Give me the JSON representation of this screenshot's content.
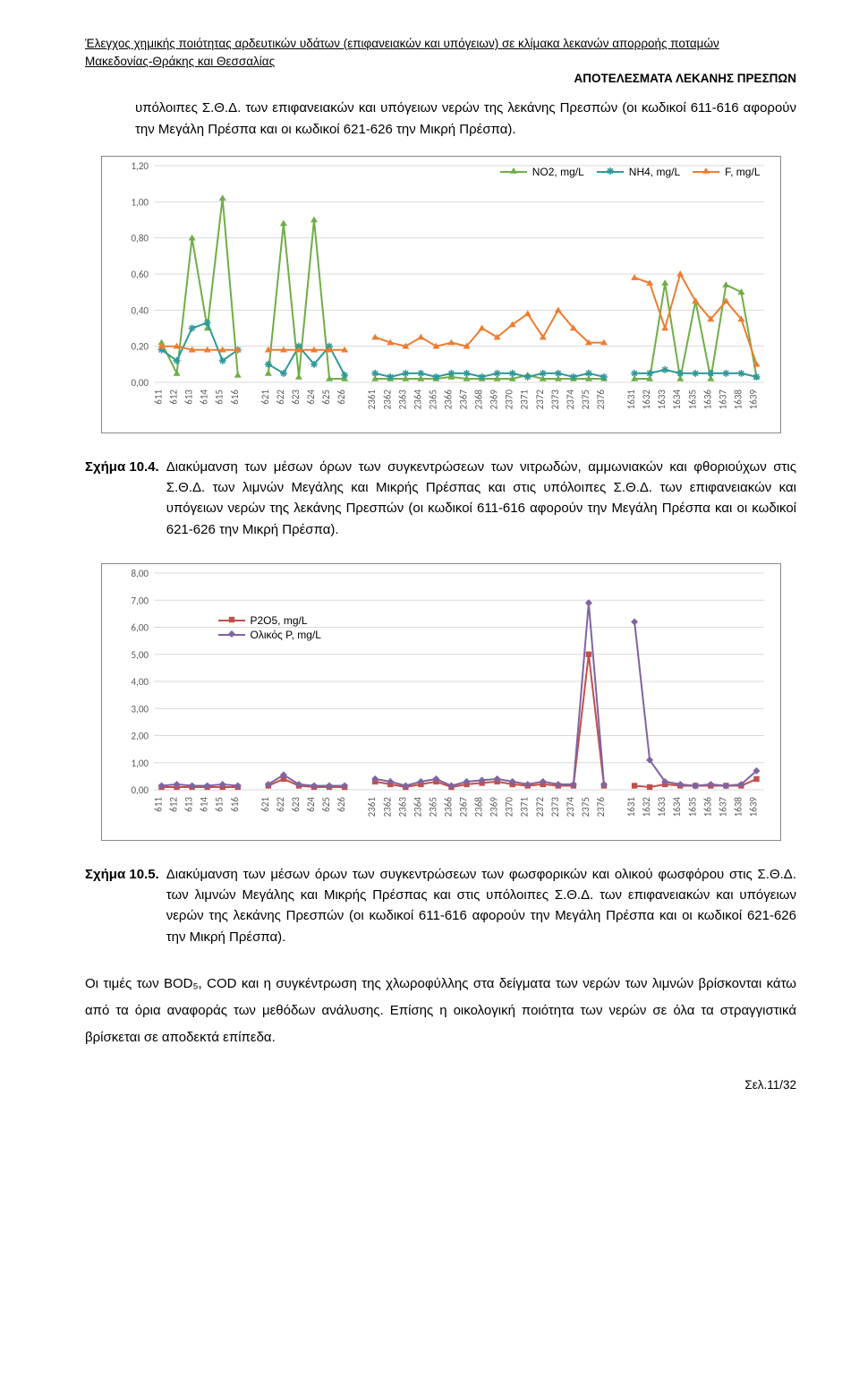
{
  "header": {
    "title_line1": "Έλεγχος χημικής ποιότητας αρδευτικών υδάτων (επιφανειακών και υπόγειων) σε κλίμακα λεκανών απορροής ποταμών",
    "title_line2": "Μακεδονίας-Θράκης και Θεσσαλίας",
    "subtitle_right": "ΑΠΟΤΕΛΕΣΜΑΤΑ ΛΕΚΑΝΗΣ ΠΡΕΣΠΩΝ"
  },
  "intro_paragraph": "υπόλοιπες Σ.Θ.Δ. των επιφανειακών και υπόγειων νερών της λεκάνης Πρεσπών (οι κωδικοί 611-616 αφορούν την Μεγάλη Πρέσπα και οι κωδικοί 621-626 την Μικρή Πρέσπα).",
  "chart1": {
    "type": "line",
    "ylim": [
      0.0,
      1.2
    ],
    "yticks": [
      0.0,
      0.2,
      0.4,
      0.6,
      0.8,
      1.0,
      1.2
    ],
    "ytick_labels": [
      "0,00",
      "0,20",
      "0,40",
      "0,60",
      "0,80",
      "1,00",
      "1,20"
    ],
    "categories": [
      "611",
      "612",
      "613",
      "614",
      "615",
      "616",
      "",
      "621",
      "622",
      "623",
      "624",
      "625",
      "626",
      "",
      "2361",
      "2362",
      "2363",
      "2364",
      "2365",
      "2366",
      "2367",
      "2368",
      "2369",
      "2370",
      "2371",
      "2372",
      "2373",
      "2374",
      "2375",
      "2376",
      "",
      "1631",
      "1632",
      "1633",
      "1634",
      "1635",
      "1636",
      "1637",
      "1638",
      "1639"
    ],
    "background_color": "#ffffff",
    "grid_color": "#d9d9d9",
    "series": [
      {
        "name": "NO2, mg/L",
        "color": "#70ad47",
        "marker": "triangle",
        "values": [
          0.22,
          0.05,
          0.8,
          0.3,
          1.02,
          0.04,
          null,
          0.05,
          0.88,
          0.03,
          0.9,
          0.02,
          0.02,
          null,
          0.02,
          0.02,
          0.02,
          0.02,
          0.02,
          0.03,
          0.02,
          0.02,
          0.02,
          0.02,
          0.04,
          0.02,
          0.02,
          0.02,
          0.02,
          0.02,
          null,
          0.02,
          0.02,
          0.55,
          0.02,
          0.45,
          0.02,
          0.54,
          0.5,
          0.03
        ]
      },
      {
        "name": "NH4, mg/L",
        "color": "#2e9999",
        "marker": "star",
        "values": [
          0.18,
          0.12,
          0.3,
          0.33,
          0.12,
          0.18,
          null,
          0.1,
          0.05,
          0.2,
          0.1,
          0.2,
          0.04,
          null,
          0.05,
          0.03,
          0.05,
          0.05,
          0.03,
          0.05,
          0.05,
          0.03,
          0.05,
          0.05,
          0.03,
          0.05,
          0.05,
          0.03,
          0.05,
          0.03,
          null,
          0.05,
          0.05,
          0.07,
          0.05,
          0.05,
          0.05,
          0.05,
          0.05,
          0.03
        ]
      },
      {
        "name": "F, mg/L",
        "color": "#ed7d31",
        "marker": "triangle",
        "values": [
          0.2,
          0.2,
          0.18,
          0.18,
          0.18,
          0.18,
          null,
          0.18,
          0.18,
          0.18,
          0.18,
          0.18,
          0.18,
          null,
          0.25,
          0.22,
          0.2,
          0.25,
          0.2,
          0.22,
          0.2,
          0.3,
          0.25,
          0.32,
          0.38,
          0.25,
          0.4,
          0.3,
          0.22,
          0.22,
          null,
          0.58,
          0.55,
          0.3,
          0.6,
          0.45,
          0.35,
          0.45,
          0.35,
          0.1
        ]
      }
    ],
    "legend_fontsize": 12,
    "axis_fontsize": 11
  },
  "caption1": {
    "label": "Σχήμα 10.4.",
    "text": "Διακύμανση των μέσων όρων των συγκεντρώσεων των νιτρωδών, αμμωνιακών και φθοριούχων στις Σ.Θ.Δ. των λιμνών Μεγάλης και Μικρής Πρέσπας και στις υπόλοιπες Σ.Θ.Δ. των επιφανειακών και υπόγειων νερών της λεκάνης Πρεσπών (οι κωδικοί 611-616 αφορούν την Μεγάλη Πρέσπα και οι κωδικοί 621-626 την Μικρή Πρέσπα)."
  },
  "chart2": {
    "type": "line",
    "ylim": [
      0.0,
      8.0
    ],
    "yticks": [
      0.0,
      1.0,
      2.0,
      3.0,
      4.0,
      5.0,
      6.0,
      7.0,
      8.0
    ],
    "ytick_labels": [
      "0,00",
      "1,00",
      "2,00",
      "3,00",
      "4,00",
      "5,00",
      "6,00",
      "7,00",
      "8,00"
    ],
    "categories": [
      "611",
      "612",
      "613",
      "614",
      "615",
      "616",
      "",
      "621",
      "622",
      "623",
      "624",
      "625",
      "626",
      "",
      "2361",
      "2362",
      "2363",
      "2364",
      "2365",
      "2366",
      "2367",
      "2368",
      "2369",
      "2370",
      "2371",
      "2372",
      "2373",
      "2374",
      "2375",
      "2376",
      "",
      "1631",
      "1632",
      "1633",
      "1634",
      "1635",
      "1636",
      "1637",
      "1638",
      "1639"
    ],
    "background_color": "#ffffff",
    "grid_color": "#d9d9d9",
    "series": [
      {
        "name": "P2O5, mg/L",
        "color": "#c0504d",
        "marker": "square",
        "values": [
          0.1,
          0.1,
          0.1,
          0.1,
          0.1,
          0.1,
          null,
          0.15,
          0.4,
          0.15,
          0.1,
          0.1,
          0.1,
          null,
          0.3,
          0.2,
          0.1,
          0.2,
          0.3,
          0.1,
          0.2,
          0.25,
          0.3,
          0.2,
          0.15,
          0.2,
          0.15,
          0.15,
          5.0,
          0.15,
          null,
          0.15,
          0.1,
          0.2,
          0.15,
          0.15,
          0.15,
          0.15,
          0.15,
          0.4
        ]
      },
      {
        "name": "Ολικός  P, mg/L",
        "color": "#8064a2",
        "marker": "diamond",
        "values": [
          0.15,
          0.2,
          0.15,
          0.15,
          0.2,
          0.15,
          null,
          0.2,
          0.55,
          0.2,
          0.15,
          0.15,
          0.15,
          null,
          0.4,
          0.3,
          0.15,
          0.3,
          0.4,
          0.15,
          0.3,
          0.35,
          0.4,
          0.3,
          0.2,
          0.3,
          0.2,
          0.2,
          6.9,
          0.2,
          null,
          6.2,
          1.1,
          0.3,
          0.2,
          0.15,
          0.2,
          0.15,
          0.2,
          0.7
        ]
      }
    ],
    "legend_fontsize": 12,
    "axis_fontsize": 11
  },
  "caption2": {
    "label": "Σχήμα 10.5.",
    "text": "Διακύμανση των μέσων όρων των συγκεντρώσεων των φωσφορικών και ολικού φωσφόρου στις Σ.Θ.Δ. των λιμνών Μεγάλης και Μικρής Πρέσπας και στις υπόλοιπες Σ.Θ.Δ. των επιφανειακών και υπόγειων νερών της λεκάνης Πρεσπών (οι κωδικοί 611-616 αφορούν την Μεγάλη Πρέσπα και οι κωδικοί 621-626 την Μικρή Πρέσπα)."
  },
  "body_paragraph": "Οι τιμές των BOD₅, COD και η συγκέντρωση της χλωροφύλλης στα δείγματα των νερών των λιμνών βρίσκονται κάτω από τα όρια αναφοράς των μεθόδων ανάλυσης. Επίσης η οικολογική ποιότητα των νερών σε όλα τα στραγγιστικά βρίσκεται σε αποδεκτά επίπεδα.",
  "footer": {
    "page": "Σελ.11/32"
  }
}
